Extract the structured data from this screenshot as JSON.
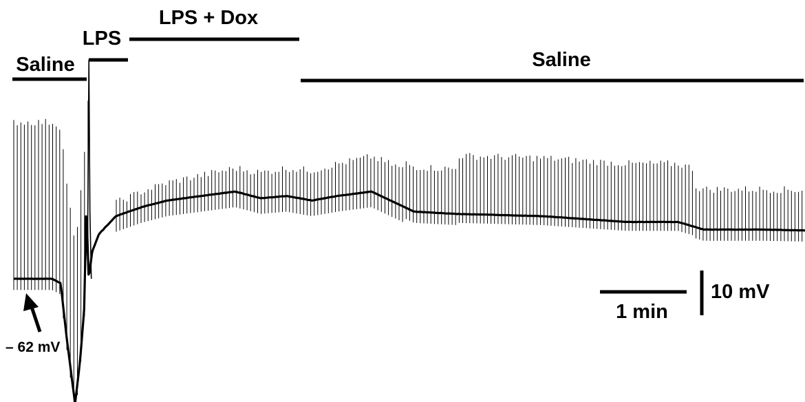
{
  "chart_data": {
    "type": "line",
    "title": "",
    "xlabel": "",
    "ylabel": "",
    "grid": false,
    "legend": "none",
    "series": [
      {
        "name": "",
        "t_min": [
          0,
          0.45,
          0.55,
          0.62,
          0.72,
          0.78,
          0.83,
          0.85,
          0.88,
          0.92,
          1.0,
          1.2,
          1.5,
          1.8,
          2.2,
          2.6,
          2.9,
          3.2,
          3.5,
          3.8,
          4.2,
          4.7,
          5.2,
          6.2,
          7.2,
          7.8,
          8.1,
          8.8,
          9.3
        ],
        "mV": [
          -62,
          -62,
          -63,
          -75,
          -90,
          -80,
          -68,
          -45,
          -62,
          -56,
          -52,
          -48,
          -46,
          -44.5,
          -43.5,
          -42.5,
          -44,
          -43.5,
          -44.5,
          -43.5,
          -42.5,
          -47,
          -47.5,
          -48,
          -49.3,
          -49.3,
          -51,
          -51,
          -51.2
        ]
      }
    ],
    "annotations": {
      "arrow_label": "– 62 mV",
      "scale_time": "1 min",
      "scale_voltage": "10 mV"
    },
    "treatments": [
      {
        "label": "Saline"
      },
      {
        "label": "LPS"
      },
      {
        "label": "LPS + Dox"
      },
      {
        "label": "Saline"
      }
    ]
  }
}
